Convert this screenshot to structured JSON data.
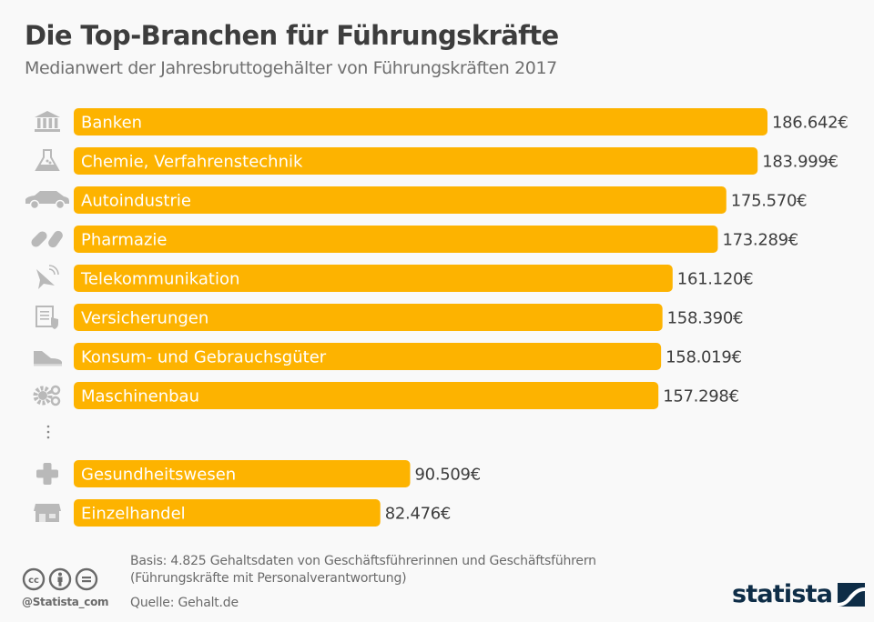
{
  "header": {
    "title": "Die Top-Branchen für Führungskräfte",
    "subtitle": "Medianwert der Jahresbruttogehälter von Führungskräften 2017"
  },
  "colors": {
    "bar": "#fdb300",
    "icon": "#b9b9b9",
    "text": "#3d3d3d",
    "brand": "#0e2d47"
  },
  "chart_data": {
    "type": "bar",
    "orientation": "horizontal",
    "title": "Die Top-Branchen für Führungskräfte",
    "subtitle": "Medianwert der Jahresbruttogehälter von Führungskräften 2017",
    "xlabel": "",
    "ylabel": "",
    "unit": "€",
    "grid": false,
    "legend": "none",
    "xlim": [
      0,
      186642
    ],
    "gap_after_index": 7,
    "gap_marker": "⋮",
    "categories": [
      "Banken",
      "Chemie, Verfahrenstechnik",
      "Autoindustrie",
      "Pharmazie",
      "Telekommunikation",
      "Versicherungen",
      "Konsum- und Gebrauchsgüter",
      "Maschinenbau",
      "Gesundheitswesen",
      "Einzelhandel"
    ],
    "values": [
      186642,
      183999,
      175570,
      173289,
      161120,
      158390,
      158019,
      157298,
      90509,
      82476
    ],
    "value_labels": [
      "186.642€",
      "183.999€",
      "175.570€",
      "173.289€",
      "161.120€",
      "158.390€",
      "158.019€",
      "157.298€",
      "90.509€",
      "82.476€"
    ],
    "icons": [
      "bank-icon",
      "flask-icon",
      "car-icon",
      "pills-icon",
      "satellite-dish-icon",
      "insurance-document-icon",
      "sneaker-icon",
      "gears-icon",
      "medical-cross-icon",
      "storefront-icon"
    ]
  },
  "footer": {
    "basis": "Basis: 4.825 Gehaltsdaten von Geschäftsführerinnen und Geschäftsführern",
    "basis_note": "(Führungskräfte mit Personalverantwortung)",
    "source": "Quelle: Gehalt.de",
    "handle": "@Statista_com",
    "license_icons": [
      "cc-icon",
      "attribution-icon",
      "no-derivatives-icon"
    ],
    "brand": "statista"
  }
}
